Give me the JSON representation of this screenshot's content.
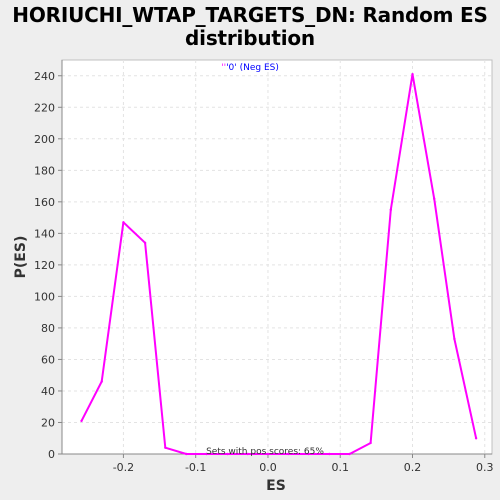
{
  "chart_data": {
    "type": "line",
    "title_line1": "HORIUCHI_WTAP_TARGETS_DN: Random ES",
    "title_line2": "distribution",
    "xlabel": "ES",
    "ylabel": "P(ES)",
    "xlim": [
      -0.285,
      0.31
    ],
    "ylim": [
      0,
      250
    ],
    "xticks": [
      -0.2,
      -0.1,
      0.0,
      0.1,
      0.2,
      0.3
    ],
    "xtick_labels": [
      "-0.2",
      "-0.1",
      "0.0",
      "0.1",
      "0.2",
      "0.3"
    ],
    "yticks": [
      0,
      20,
      40,
      60,
      80,
      100,
      120,
      140,
      160,
      180,
      200,
      220,
      240
    ],
    "ytick_labels": [
      "0",
      "20",
      "40",
      "60",
      "80",
      "100",
      "120",
      "140",
      "160",
      "180",
      "200",
      "220",
      "240"
    ],
    "grid": true,
    "series": [
      {
        "name": "'0' (Neg ES)",
        "color": "#ff00ff",
        "x": [
          -0.258,
          -0.23,
          -0.2,
          -0.17,
          -0.142,
          -0.113,
          -0.085,
          -0.056,
          -0.028,
          0.0,
          0.028,
          0.056,
          0.085,
          0.113,
          0.142,
          0.17,
          0.2,
          0.23,
          0.258,
          0.288
        ],
        "y": [
          21,
          46,
          147,
          134,
          4,
          0,
          0,
          0,
          0,
          0,
          0,
          0,
          0,
          0,
          7,
          155,
          241,
          162,
          73,
          10
        ]
      }
    ],
    "legend_quote": "''",
    "legend_label": "'0' (Neg ES)",
    "annotation": "Sets with pos scores: 65%"
  }
}
